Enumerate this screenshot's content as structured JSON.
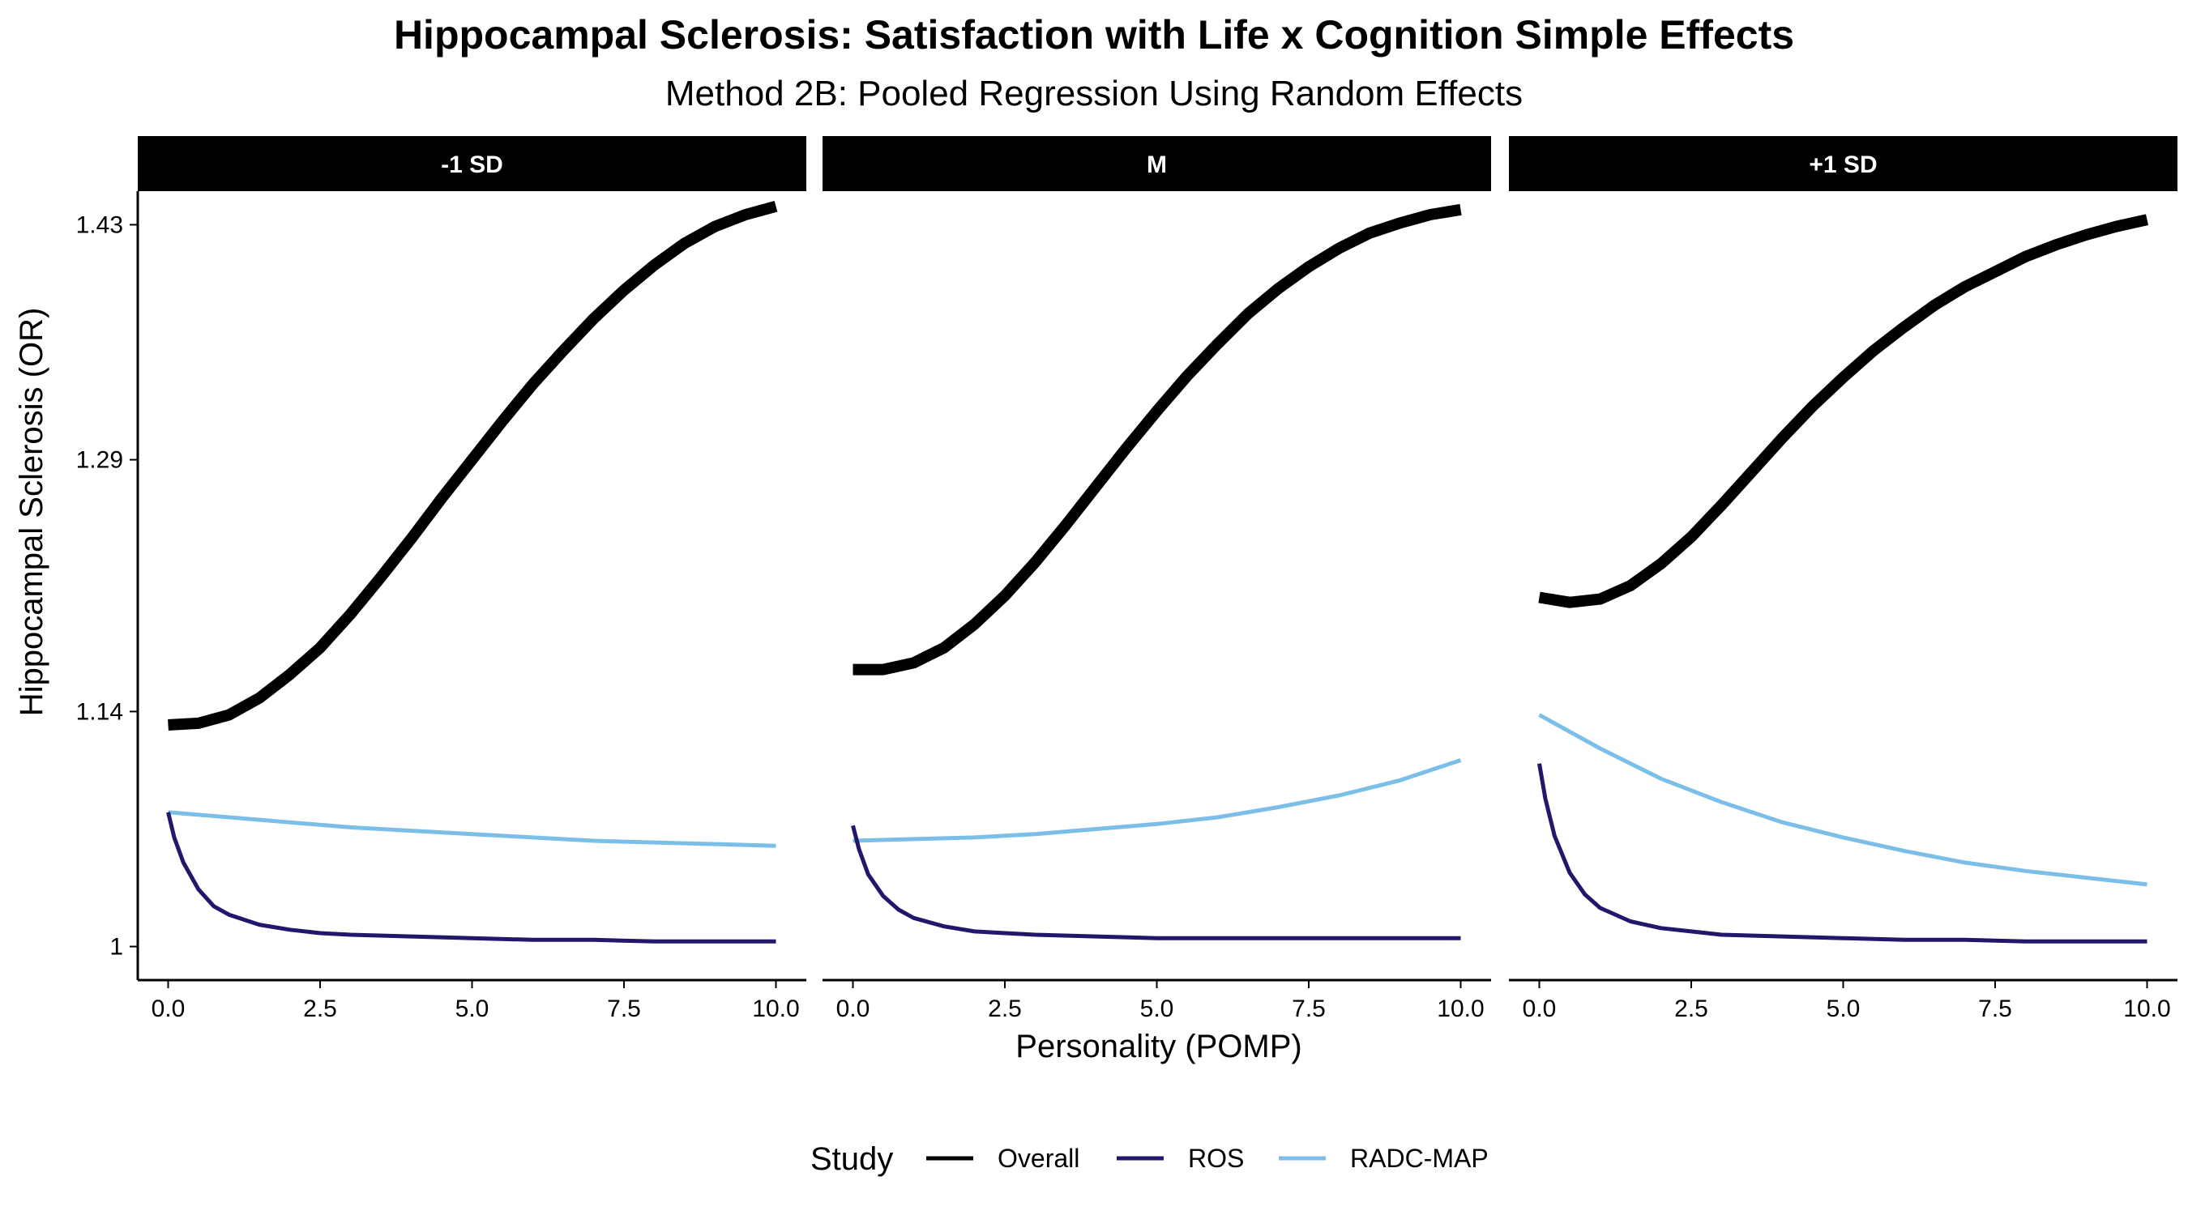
{
  "chart_data": {
    "type": "line",
    "title": "Hippocampal Sclerosis: Satisfaction with Life x Cognition Simple Effects",
    "subtitle": "Method 2B: Pooled Regression Using Random Effects",
    "xlabel": "Personality (POMP)",
    "ylabel": "Hippocampal Sclerosis (OR)",
    "xlim": [
      -0.5,
      10.5
    ],
    "ylim": [
      0.98,
      1.45
    ],
    "x_ticks": [
      0,
      2.5,
      5,
      7.5,
      10
    ],
    "x_tick_labels": [
      "0.0",
      "2.5",
      "5.0",
      "7.5",
      "10.0"
    ],
    "y_ticks": [
      1.0,
      1.14,
      1.29,
      1.43
    ],
    "y_tick_labels": [
      "1",
      "1.14",
      "1.29",
      "1.43"
    ],
    "grid": false,
    "legend": {
      "title": "Study",
      "placement": "bottom",
      "entries": [
        "Overall",
        "ROS",
        "RADC-MAP"
      ]
    },
    "series_styles": {
      "Overall": {
        "color": "#000000",
        "width": 14
      },
      "ROS": {
        "color": "#21176b",
        "width": 5
      },
      "RADC-MAP": {
        "color": "#7bbfe8",
        "width": 5
      }
    },
    "panels": [
      {
        "label": "-1 SD",
        "series": [
          {
            "name": "Overall",
            "x": [
              0,
              0.5,
              1,
              1.5,
              2,
              2.5,
              3,
              3.5,
              4,
              4.5,
              5,
              5.5,
              6,
              6.5,
              7,
              7.5,
              8,
              8.5,
              9,
              9.5,
              10
            ],
            "y": [
              1.132,
              1.133,
              1.138,
              1.148,
              1.162,
              1.178,
              1.198,
              1.22,
              1.243,
              1.267,
              1.29,
              1.313,
              1.335,
              1.355,
              1.374,
              1.391,
              1.406,
              1.419,
              1.429,
              1.436,
              1.441
            ]
          },
          {
            "name": "ROS",
            "x": [
              0,
              0.1,
              0.25,
              0.5,
              0.75,
              1,
              1.5,
              2,
              2.5,
              3,
              4,
              5,
              6,
              7,
              8,
              9,
              10
            ],
            "y": [
              1.08,
              1.065,
              1.05,
              1.034,
              1.024,
              1.019,
              1.013,
              1.01,
              1.008,
              1.007,
              1.006,
              1.005,
              1.004,
              1.004,
              1.003,
              1.003,
              1.003
            ]
          },
          {
            "name": "RADC-MAP",
            "x": [
              0,
              1,
              2,
              3,
              4,
              5,
              6,
              7,
              8,
              9,
              10
            ],
            "y": [
              1.08,
              1.077,
              1.074,
              1.071,
              1.069,
              1.067,
              1.065,
              1.063,
              1.062,
              1.061,
              1.06
            ]
          }
        ]
      },
      {
        "label": "M",
        "series": [
          {
            "name": "Overall",
            "x": [
              0,
              0.5,
              1,
              1.5,
              2,
              2.5,
              3,
              3.5,
              4,
              4.5,
              5,
              5.5,
              6,
              6.5,
              7,
              7.5,
              8,
              8.5,
              9,
              9.5,
              10
            ],
            "y": [
              1.165,
              1.165,
              1.169,
              1.178,
              1.192,
              1.209,
              1.229,
              1.251,
              1.274,
              1.297,
              1.319,
              1.34,
              1.359,
              1.377,
              1.392,
              1.405,
              1.416,
              1.425,
              1.431,
              1.436,
              1.439
            ]
          },
          {
            "name": "ROS",
            "x": [
              0,
              0.1,
              0.25,
              0.5,
              0.75,
              1,
              1.5,
              2,
              2.5,
              3,
              4,
              5,
              6,
              7,
              8,
              9,
              10
            ],
            "y": [
              1.072,
              1.058,
              1.043,
              1.03,
              1.022,
              1.017,
              1.012,
              1.009,
              1.008,
              1.007,
              1.006,
              1.005,
              1.005,
              1.005,
              1.005,
              1.005,
              1.005
            ]
          },
          {
            "name": "RADC-MAP",
            "x": [
              0,
              1,
              2,
              3,
              4,
              5,
              6,
              7,
              8,
              9,
              10
            ],
            "y": [
              1.063,
              1.064,
              1.065,
              1.067,
              1.07,
              1.073,
              1.077,
              1.083,
              1.09,
              1.099,
              1.111
            ]
          }
        ]
      },
      {
        "label": "+1 SD",
        "series": [
          {
            "name": "Overall",
            "x": [
              0,
              0.5,
              1,
              1.5,
              2,
              2.5,
              3,
              3.5,
              4,
              4.5,
              5,
              5.5,
              6,
              6.5,
              7,
              7.5,
              8,
              8.5,
              9,
              9.5,
              10
            ],
            "y": [
              1.208,
              1.205,
              1.207,
              1.215,
              1.228,
              1.244,
              1.263,
              1.283,
              1.303,
              1.322,
              1.339,
              1.355,
              1.369,
              1.382,
              1.393,
              1.402,
              1.411,
              1.418,
              1.424,
              1.429,
              1.433
            ]
          },
          {
            "name": "ROS",
            "x": [
              0,
              0.1,
              0.25,
              0.5,
              0.75,
              1,
              1.5,
              2,
              2.5,
              3,
              4,
              5,
              6,
              7,
              8,
              9,
              10
            ],
            "y": [
              1.109,
              1.088,
              1.066,
              1.044,
              1.031,
              1.023,
              1.015,
              1.011,
              1.009,
              1.007,
              1.006,
              1.005,
              1.004,
              1.004,
              1.003,
              1.003,
              1.003
            ]
          },
          {
            "name": "RADC-MAP",
            "x": [
              0,
              1,
              2,
              3,
              4,
              5,
              6,
              7,
              8,
              9,
              10
            ],
            "y": [
              1.138,
              1.118,
              1.1,
              1.086,
              1.074,
              1.065,
              1.057,
              1.05,
              1.045,
              1.041,
              1.037
            ]
          }
        ]
      }
    ]
  }
}
